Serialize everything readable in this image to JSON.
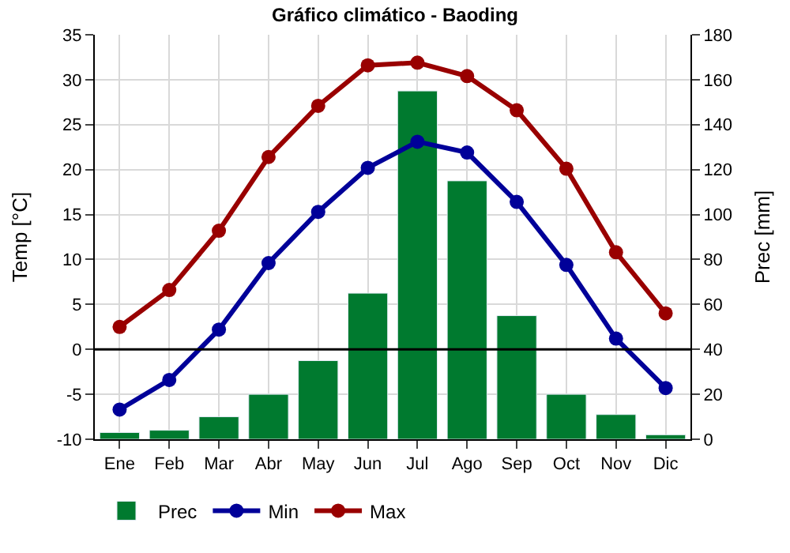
{
  "chart_data": {
    "type": "line",
    "title": "Gráfico climático - Baoding",
    "ylabel": "Temp [°C]",
    "y2label": "Prec [mm]",
    "categories": [
      "Ene",
      "Feb",
      "Mar",
      "Abr",
      "May",
      "Jun",
      "Jul",
      "Ago",
      "Sep",
      "Oct",
      "Nov",
      "Dic"
    ],
    "series": [
      {
        "name": "Prec",
        "type": "bar",
        "axis": "y2",
        "color": "#007a2f",
        "values": [
          3,
          4,
          10,
          20,
          35,
          65,
          155,
          115,
          55,
          20,
          11,
          2
        ]
      },
      {
        "name": "Min",
        "color": "#000099",
        "marker": "circle",
        "values": [
          -6.7,
          -3.4,
          2.2,
          9.6,
          15.3,
          20.2,
          23.1,
          21.9,
          16.4,
          9.4,
          1.2,
          -4.3
        ]
      },
      {
        "name": "Max",
        "color": "#990000",
        "marker": "circle",
        "values": [
          2.5,
          6.6,
          13.2,
          21.4,
          27.1,
          31.6,
          31.9,
          30.4,
          26.6,
          20.1,
          10.8,
          4.0
        ]
      }
    ],
    "ylim": [
      -10,
      35
    ],
    "yticks": [
      -10,
      -5,
      0,
      5,
      10,
      15,
      20,
      25,
      30,
      35
    ],
    "y2lim": [
      0,
      180
    ],
    "y2ticks": [
      0,
      20,
      40,
      60,
      80,
      100,
      120,
      140,
      160,
      180
    ],
    "ref_lines": [
      {
        "axis": "y",
        "value": 0,
        "color": "#000000"
      }
    ],
    "grid": true,
    "legend": "bottom left"
  }
}
